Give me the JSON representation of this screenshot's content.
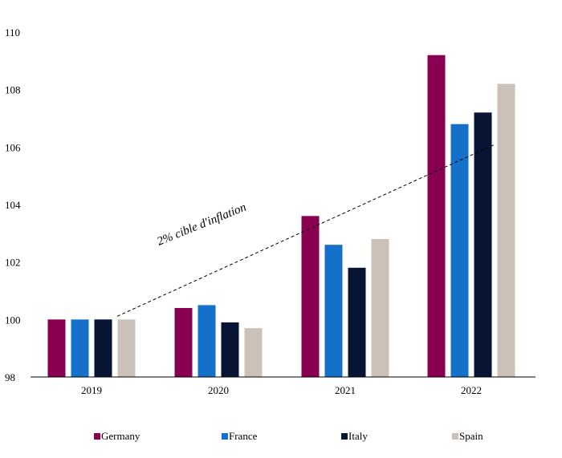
{
  "chart_data": {
    "type": "bar",
    "categories": [
      "2019",
      "2020",
      "2021",
      "2022"
    ],
    "series": [
      {
        "name": "Germany",
        "color": "#8a0050",
        "values": [
          100.0,
          100.4,
          103.6,
          109.2
        ]
      },
      {
        "name": "France",
        "color": "#1570c9",
        "values": [
          100.0,
          100.5,
          102.6,
          106.8
        ]
      },
      {
        "name": "Italy",
        "color": "#071433",
        "values": [
          100.0,
          99.9,
          101.8,
          107.2
        ]
      },
      {
        "name": "Spain",
        "color": "#cbc1b8",
        "values": [
          100.0,
          99.7,
          102.8,
          108.2
        ]
      }
    ],
    "ylim": [
      98,
      110
    ],
    "yticks": [
      "98",
      "100",
      "102",
      "104",
      "106",
      "108",
      "110"
    ],
    "annotation": {
      "text": "2% cible d'inflation",
      "line": {
        "from": {
          "category": "2019",
          "y": 100.0
        },
        "to": {
          "category": "2022",
          "y": 106.1
        }
      }
    },
    "legend_position": "bottom",
    "grid": false
  }
}
